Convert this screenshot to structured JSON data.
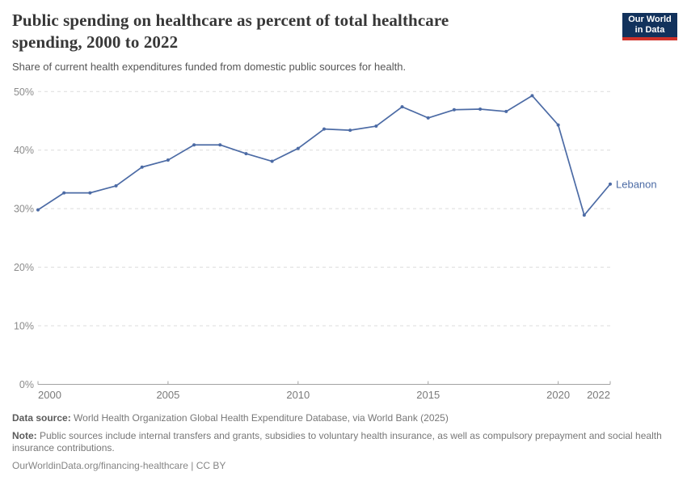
{
  "header": {
    "title": "Public spending on healthcare as percent of total healthcare spending, 2000 to 2022",
    "subtitle": "Share of current health expenditures funded from domestic public sources for health."
  },
  "logo": {
    "line1": "Our World",
    "line2": "in Data"
  },
  "chart_data": {
    "type": "line",
    "x": [
      2000,
      2001,
      2002,
      2003,
      2004,
      2005,
      2006,
      2007,
      2008,
      2009,
      2010,
      2011,
      2012,
      2013,
      2014,
      2015,
      2016,
      2017,
      2018,
      2019,
      2020,
      2021,
      2022
    ],
    "series": [
      {
        "name": "Lebanon",
        "color": "#4C6BA5",
        "values": [
          29.8,
          32.7,
          32.7,
          33.9,
          37.1,
          38.3,
          40.9,
          40.9,
          39.4,
          38.1,
          40.3,
          43.6,
          43.4,
          44.1,
          47.4,
          45.5,
          46.9,
          47.0,
          46.6,
          49.3,
          44.3,
          28.9,
          34.2
        ]
      }
    ],
    "xlabel": "",
    "ylabel": "",
    "ylim": [
      0,
      50
    ],
    "yticks": [
      0,
      10,
      20,
      30,
      40,
      50
    ],
    "ytick_suffix": "%",
    "xticks": [
      2000,
      2005,
      2010,
      2015,
      2020,
      2022
    ],
    "grid": "horizontal-dashed",
    "legend_position": "end-of-line-label",
    "end_label": "Lebanon"
  },
  "colors": {
    "line": "#4C6BA5",
    "grid": "#dcdcdc",
    "axis": "#a3a3a3",
    "ytick_text": "#8b8b8b",
    "xtick_text": "#7a7a7a",
    "title": "#373737",
    "logo_bg": "#12325c",
    "logo_bar": "#cf3129"
  },
  "footer": {
    "datasource_label": "Data source:",
    "datasource_text": " World Health Organization Global Health Expenditure Database, via World Bank (2025)",
    "note_label": "Note:",
    "note_text": " Public sources include internal transfers and grants, subsidies to voluntary health insurance, as well as compulsory prepayment and social health insurance contributions.",
    "url": "OurWorldinData.org/financing-healthcare",
    "separator": " | ",
    "license": "CC BY"
  }
}
